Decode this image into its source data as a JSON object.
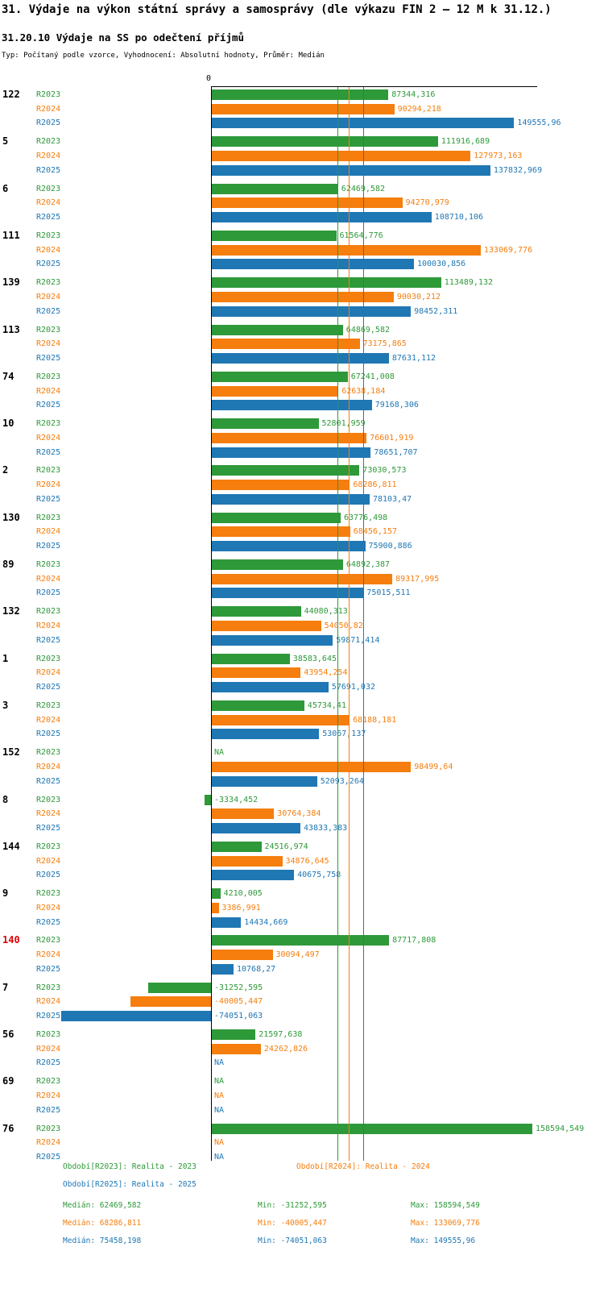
{
  "title": "31. Výdaje na výkon státní správy a samosprávy (dle výkazu FIN 2 – 12 M k 31.12.)",
  "subtitle": "31.20.10 Výdaje na SS po odečtení příjmů",
  "meta_line": "Typ: Počítaný podle vzorce, Vyhodnocení: Absolutní hodnoty, Průměr: Medián",
  "axis": {
    "zero_label": "0"
  },
  "colors": {
    "r2023": "#2e9939",
    "r2024": "#f57e0e",
    "r2025": "#1f77b4",
    "highlight": "#e00000",
    "axis": "#000000"
  },
  "chart_data": {
    "type": "bar",
    "orientation": "horizontal",
    "series": [
      "R2023",
      "R2024",
      "R2025"
    ],
    "series_names": [
      "Realita - 2023",
      "Realita - 2024",
      "Realita - 2025"
    ],
    "x_min": -74051.063,
    "x_max": 158594.549,
    "medians": [
      62469.582,
      68286.811,
      75458.198
    ],
    "groups": [
      {
        "id": "122",
        "values": [
          87344.316,
          90294.218,
          149555.96
        ],
        "labels": [
          "87344,316",
          "90294,218",
          "149555,96"
        ]
      },
      {
        "id": "5",
        "values": [
          111916.689,
          127973.163,
          137832.969
        ],
        "labels": [
          "111916,689",
          "127973,163",
          "137832,969"
        ]
      },
      {
        "id": "6",
        "values": [
          62469.582,
          94270.979,
          108710.106
        ],
        "labels": [
          "62469,582",
          "94270,979",
          "108710,106"
        ]
      },
      {
        "id": "111",
        "values": [
          61564.776,
          133069.776,
          100030.856
        ],
        "labels": [
          "61564,776",
          "133069,776",
          "100030,856"
        ]
      },
      {
        "id": "139",
        "values": [
          113489.132,
          90030.212,
          98452.311
        ],
        "labels": [
          "113489,132",
          "90030,212",
          "98452,311"
        ]
      },
      {
        "id": "113",
        "values": [
          64869.582,
          73175.865,
          87631.112
        ],
        "labels": [
          "64869,582",
          "73175,865",
          "87631,112"
        ]
      },
      {
        "id": "74",
        "values": [
          67241.008,
          62638.184,
          79168.306
        ],
        "labels": [
          "67241,008",
          "62638,184",
          "79168,306"
        ]
      },
      {
        "id": "10",
        "values": [
          52801.959,
          76601.919,
          78651.707
        ],
        "labels": [
          "52801,959",
          "76601,919",
          "78651,707"
        ]
      },
      {
        "id": "2",
        "values": [
          73030.573,
          68286.811,
          78103.47
        ],
        "labels": [
          "73030,573",
          "68286,811",
          "78103,47"
        ]
      },
      {
        "id": "130",
        "values": [
          63776.498,
          68456.157,
          75900.886
        ],
        "labels": [
          "63776,498",
          "68456,157",
          "75900,886"
        ]
      },
      {
        "id": "89",
        "values": [
          64892.387,
          89317.995,
          75015.511
        ],
        "labels": [
          "64892,387",
          "89317,995",
          "75015,511"
        ]
      },
      {
        "id": "132",
        "values": [
          44080.313,
          54050.82,
          59871.414
        ],
        "labels": [
          "44080,313",
          "54050,82",
          "59871,414"
        ]
      },
      {
        "id": "1",
        "values": [
          38583.645,
          43954.254,
          57691.032
        ],
        "labels": [
          "38583,645",
          "43954,254",
          "57691,032"
        ]
      },
      {
        "id": "3",
        "values": [
          45734.41,
          68188.181,
          53067.137
        ],
        "labels": [
          "45734,41",
          "68188,181",
          "53067,137"
        ]
      },
      {
        "id": "152",
        "values": [
          null,
          98499.64,
          52093.264
        ],
        "labels": [
          "NA",
          "98499,64",
          "52093,264"
        ]
      },
      {
        "id": "8",
        "values": [
          -3334.452,
          30764.384,
          43833.383
        ],
        "labels": [
          "-3334,452",
          "30764,384",
          "43833,383"
        ]
      },
      {
        "id": "144",
        "values": [
          24516.974,
          34876.645,
          40675.758
        ],
        "labels": [
          "24516,974",
          "34876,645",
          "40675,758"
        ]
      },
      {
        "id": "9",
        "values": [
          4210.005,
          3386.991,
          14434.669
        ],
        "labels": [
          "4210,005",
          "3386,991",
          "14434,669"
        ]
      },
      {
        "id": "140",
        "highlight": true,
        "values": [
          87717.808,
          30094.497,
          10768.27
        ],
        "labels": [
          "87717,808",
          "30094,497",
          "10768,27"
        ]
      },
      {
        "id": "7",
        "values": [
          -31252.595,
          -40005.447,
          -74051.063
        ],
        "labels": [
          "-31252,595",
          "-40005,447",
          "-74051,063"
        ]
      },
      {
        "id": "56",
        "values": [
          21597.638,
          24262.826,
          null
        ],
        "labels": [
          "21597,638",
          "24262,826",
          "NA"
        ]
      },
      {
        "id": "69",
        "values": [
          null,
          null,
          null
        ],
        "labels": [
          "NA",
          "NA",
          "NA"
        ]
      },
      {
        "id": "76",
        "values": [
          158594.549,
          null,
          null
        ],
        "labels": [
          "158594,549",
          "NA",
          "NA"
        ]
      }
    ]
  },
  "legend": {
    "r2023": "Období[R2023]: Realita - 2023",
    "r2024": "Období[R2024]: Realita - 2024",
    "r2025": "Období[R2025]: Realita - 2025"
  },
  "stats": {
    "r2023": {
      "median": "Medián: 62469,582",
      "min": "Min: -31252,595",
      "max": "Max: 158594,549"
    },
    "r2024": {
      "median": "Medián: 68286,811",
      "min": "Min: -40005,447",
      "max": "Max: 133069,776"
    },
    "r2025": {
      "median": "Medián: 75458,198",
      "min": "Min: -74051,063",
      "max": "Max: 149555,96"
    }
  }
}
